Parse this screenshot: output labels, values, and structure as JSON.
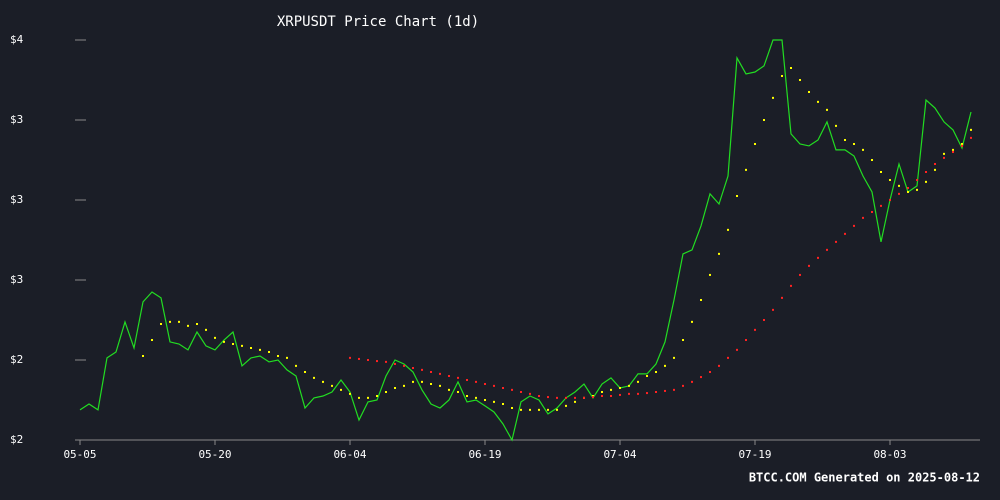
{
  "chart_data": {
    "type": "line",
    "title": "XRPUSDT Price Chart (1d)",
    "footer": "BTCC.COM Generated on 2025-08-12",
    "categories": [
      "05-05",
      null,
      null,
      null,
      null,
      null,
      null,
      null,
      null,
      null,
      null,
      null,
      null,
      null,
      null,
      "05-20",
      null,
      null,
      null,
      null,
      null,
      null,
      null,
      null,
      null,
      null,
      null,
      null,
      null,
      null,
      "06-04",
      null,
      null,
      null,
      null,
      null,
      null,
      null,
      null,
      null,
      null,
      null,
      null,
      null,
      null,
      "06-19",
      null,
      null,
      null,
      null,
      null,
      null,
      null,
      null,
      null,
      null,
      null,
      null,
      null,
      null,
      "07-04",
      null,
      null,
      null,
      null,
      null,
      null,
      null,
      null,
      null,
      null,
      null,
      null,
      null,
      null,
      "07-19",
      null,
      null,
      null,
      null,
      null,
      null,
      null,
      null,
      null,
      null,
      null,
      null,
      null,
      null,
      "08-03",
      null,
      null,
      null,
      null,
      null,
      null,
      null,
      null,
      null
    ],
    "series": [
      {
        "color": "#22dd22",
        "style": "line",
        "values": [
          2.113,
          2.135,
          2.113,
          2.308,
          2.33,
          2.443,
          2.345,
          2.518,
          2.555,
          2.533,
          2.368,
          2.36,
          2.338,
          2.405,
          2.353,
          2.338,
          2.375,
          2.405,
          2.278,
          2.308,
          2.315,
          2.293,
          2.3,
          2.263,
          2.24,
          2.12,
          2.158,
          2.165,
          2.18,
          2.225,
          2.18,
          2.075,
          2.143,
          2.15,
          2.24,
          2.3,
          2.285,
          2.255,
          2.188,
          2.135,
          2.12,
          2.15,
          2.218,
          2.143,
          2.15,
          2.128,
          2.105,
          2.06,
          2.0,
          2.143,
          2.165,
          2.15,
          2.098,
          2.12,
          2.158,
          2.18,
          2.21,
          2.158,
          2.21,
          2.233,
          2.195,
          2.203,
          2.248,
          2.248,
          2.285,
          2.368,
          2.525,
          2.698,
          2.713,
          2.803,
          2.923,
          2.885,
          2.99,
          3.433,
          3.373,
          3.38,
          3.403,
          3.5,
          3.5,
          3.148,
          3.11,
          3.103,
          3.125,
          3.193,
          3.088,
          3.088,
          3.065,
          2.99,
          2.93,
          2.743,
          2.9,
          3.035,
          2.93,
          2.953,
          3.275,
          3.245,
          3.193,
          3.163,
          3.095,
          3.23
        ]
      },
      {
        "color": "#ffff00",
        "style": "dots",
        "values": [
          null,
          null,
          null,
          null,
          null,
          null,
          null,
          2.315,
          2.375,
          2.435,
          2.443,
          2.443,
          2.428,
          2.435,
          2.413,
          2.383,
          2.368,
          2.36,
          2.353,
          2.345,
          2.338,
          2.33,
          2.315,
          2.308,
          2.278,
          2.255,
          2.233,
          2.218,
          2.203,
          2.188,
          2.173,
          2.158,
          2.158,
          2.165,
          2.18,
          2.195,
          2.203,
          2.218,
          2.218,
          2.21,
          2.203,
          2.188,
          2.18,
          2.165,
          2.158,
          2.15,
          2.143,
          2.135,
          2.12,
          2.113,
          2.113,
          2.113,
          2.113,
          2.113,
          2.128,
          2.143,
          2.158,
          2.165,
          2.18,
          2.188,
          2.195,
          2.203,
          2.218,
          2.24,
          2.255,
          2.278,
          2.308,
          2.375,
          2.443,
          2.525,
          2.619,
          2.698,
          2.788,
          2.915,
          3.013,
          3.11,
          3.2,
          3.283,
          3.365,
          3.395,
          3.35,
          3.305,
          3.268,
          3.238,
          3.178,
          3.125,
          3.11,
          3.088,
          3.05,
          3.005,
          2.975,
          2.953,
          2.93,
          2.938,
          2.968,
          3.013,
          3.073,
          3.088,
          3.11,
          3.163
        ]
      },
      {
        "color": "#ff2222",
        "style": "dots",
        "values": [
          null,
          null,
          null,
          null,
          null,
          null,
          null,
          null,
          null,
          null,
          null,
          null,
          null,
          null,
          null,
          null,
          null,
          null,
          null,
          null,
          null,
          null,
          null,
          null,
          null,
          null,
          null,
          null,
          null,
          null,
          2.308,
          2.304,
          2.3,
          2.296,
          2.293,
          2.285,
          2.278,
          2.27,
          2.263,
          2.255,
          2.248,
          2.24,
          2.233,
          2.225,
          2.218,
          2.21,
          2.203,
          2.195,
          2.188,
          2.18,
          2.173,
          2.165,
          2.161,
          2.158,
          2.158,
          2.158,
          2.158,
          2.161,
          2.165,
          2.165,
          2.169,
          2.173,
          2.173,
          2.176,
          2.18,
          2.184,
          2.188,
          2.203,
          2.218,
          2.236,
          2.255,
          2.278,
          2.308,
          2.338,
          2.375,
          2.413,
          2.45,
          2.488,
          2.533,
          2.578,
          2.619,
          2.653,
          2.683,
          2.713,
          2.743,
          2.773,
          2.803,
          2.833,
          2.855,
          2.878,
          2.9,
          2.923,
          2.945,
          2.975,
          3.005,
          3.035,
          3.058,
          3.08,
          3.103,
          3.133
        ]
      }
    ],
    "ylim": [
      2.0,
      3.5
    ],
    "yticks": [
      {
        "value": 2.0,
        "label": "$2"
      },
      {
        "value": 2.3,
        "label": "$2"
      },
      {
        "value": 2.6,
        "label": "$3"
      },
      {
        "value": 2.9,
        "label": "$3"
      },
      {
        "value": 3.2,
        "label": "$3"
      },
      {
        "value": 3.5,
        "label": "$4"
      }
    ]
  }
}
